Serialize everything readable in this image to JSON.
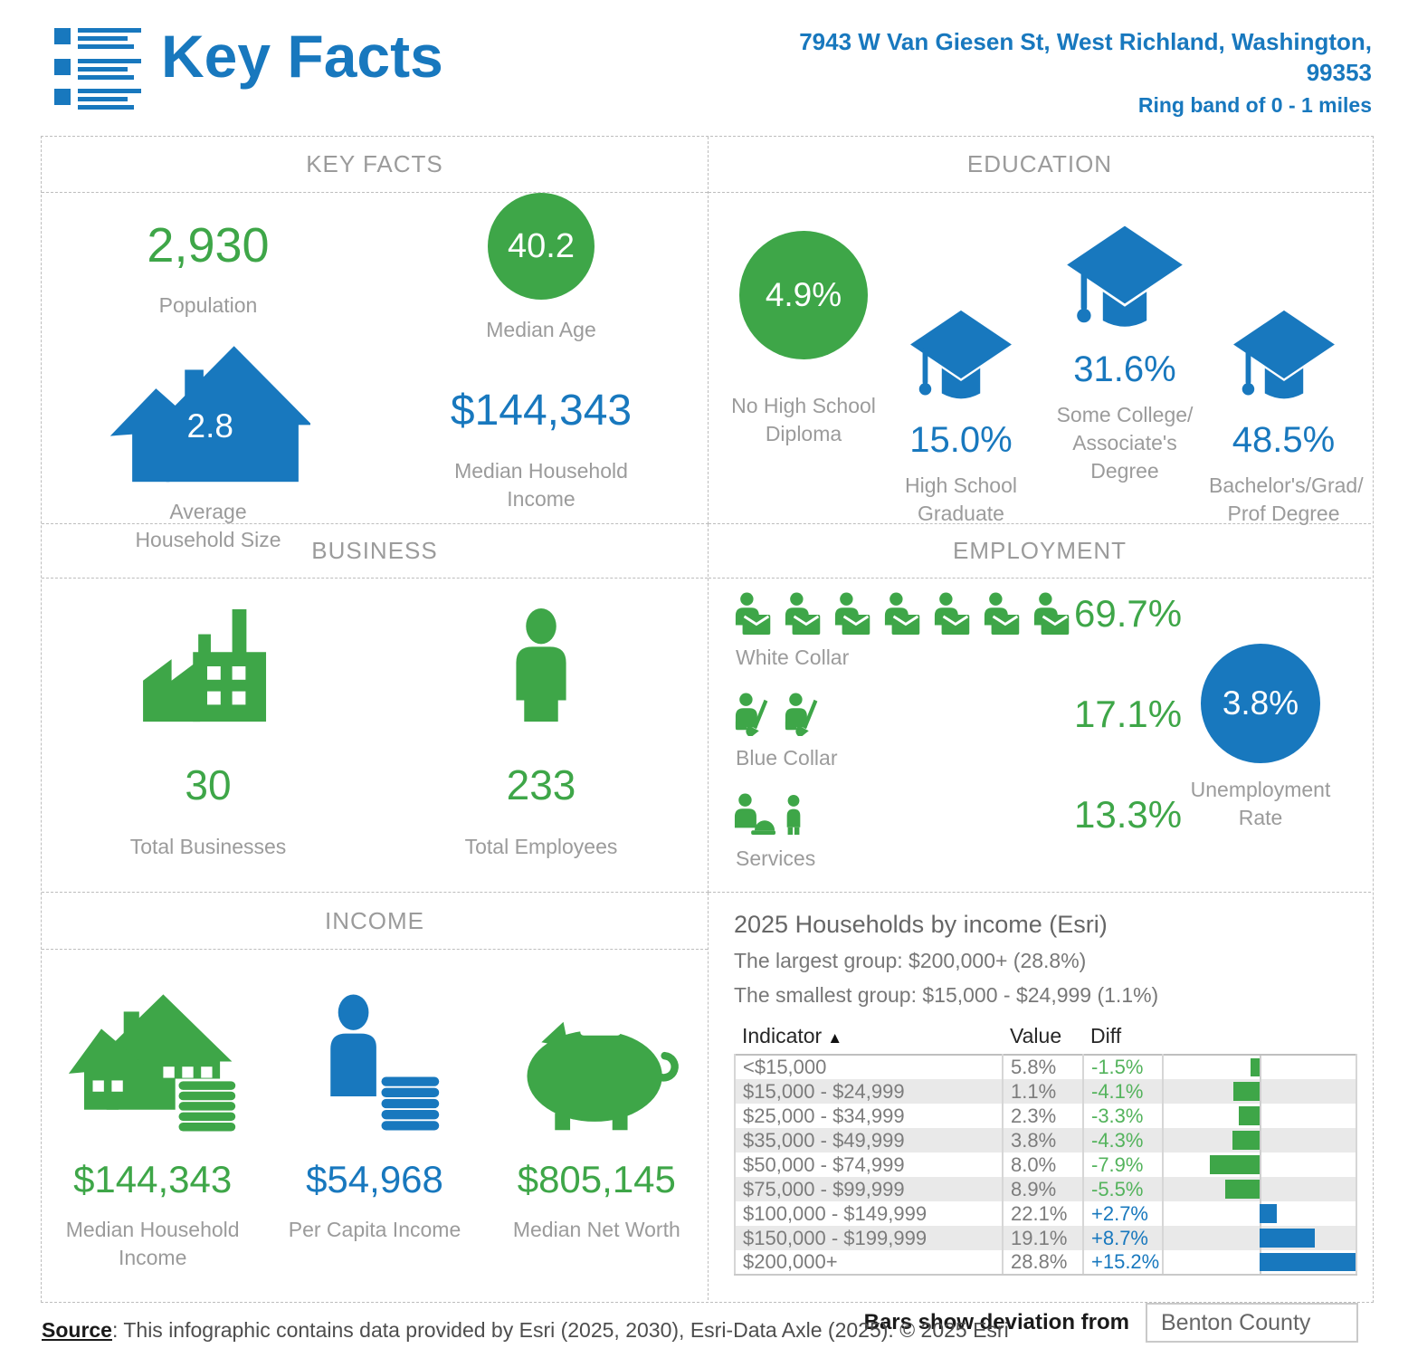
{
  "header": {
    "title": "Key Facts",
    "address": "7943 W Van Giesen St, West Richland, Washington,\n99353",
    "ring_band": "Ring band of 0 - 1 miles"
  },
  "colors": {
    "blue": "#1878BE",
    "green": "#3EA648",
    "label_gray": "#9b9b9b"
  },
  "panels": {
    "key_facts": {
      "title": "KEY FACTS",
      "population": {
        "value": "2,930",
        "label": "Population"
      },
      "median_age": {
        "value": "40.2",
        "label": "Median Age"
      },
      "avg_household_size": {
        "value": "2.8",
        "label": "Average\nHousehold Size"
      },
      "median_household_income": {
        "value": "$144,343",
        "label": "Median Household\nIncome"
      }
    },
    "education": {
      "title": "EDUCATION",
      "items": [
        {
          "value": "4.9%",
          "label": "No High School\nDiploma"
        },
        {
          "value": "15.0%",
          "label": "High School\nGraduate"
        },
        {
          "value": "31.6%",
          "label": "Some College/\nAssociate's Degree"
        },
        {
          "value": "48.5%",
          "label": "Bachelor's/Grad/\nProf Degree"
        }
      ]
    },
    "business": {
      "title": "BUSINESS",
      "total_businesses": {
        "value": "30",
        "label": "Total Businesses"
      },
      "total_employees": {
        "value": "233",
        "label": "Total Employees"
      }
    },
    "employment": {
      "title": "EMPLOYMENT",
      "categories": [
        {
          "value": "69.7%",
          "label": "White Collar",
          "icon_count": 7
        },
        {
          "value": "17.1%",
          "label": "Blue Collar",
          "icon_count": 2
        },
        {
          "value": "13.3%",
          "label": "Services",
          "icon_count": 2
        }
      ],
      "unemployment": {
        "value": "3.8%",
        "label": "Unemployment\nRate"
      }
    },
    "income": {
      "title": "INCOME",
      "items": [
        {
          "value": "$144,343",
          "label": "Median Household\nIncome",
          "color": "green"
        },
        {
          "value": "$54,968",
          "label": "Per Capita Income",
          "color": "blue"
        },
        {
          "value": "$805,145",
          "label": "Median Net Worth",
          "color": "green"
        }
      ]
    },
    "households_by_income": {
      "title": "2025 Households by income (Esri)",
      "largest_group": "The largest group: $200,000+ (28.8%)",
      "smallest_group": "The smallest group: $15,000 - $24,999 (1.1%)",
      "table": {
        "headers": {
          "indicator": "Indicator",
          "value": "Value",
          "diff": "Diff"
        },
        "sort_icon": "▲",
        "rows": [
          {
            "indicator": "<$15,000",
            "value": "5.8%",
            "diff": "-1.5%",
            "diff_num": -1.5
          },
          {
            "indicator": "$15,000 - $24,999",
            "value": "1.1%",
            "diff": "-4.1%",
            "diff_num": -4.1
          },
          {
            "indicator": "$25,000 - $34,999",
            "value": "2.3%",
            "diff": "-3.3%",
            "diff_num": -3.3
          },
          {
            "indicator": "$35,000 - $49,999",
            "value": "3.8%",
            "diff": "-4.3%",
            "diff_num": -4.3
          },
          {
            "indicator": "$50,000 - $74,999",
            "value": "8.0%",
            "diff": "-7.9%",
            "diff_num": -7.9
          },
          {
            "indicator": "$75,000 - $99,999",
            "value": "8.9%",
            "diff": "-5.5%",
            "diff_num": -5.5
          },
          {
            "indicator": "$100,000 - $149,999",
            "value": "22.1%",
            "diff": "+2.7%",
            "diff_num": 2.7
          },
          {
            "indicator": "$150,000 - $199,999",
            "value": "19.1%",
            "diff": "+8.7%",
            "diff_num": 8.7
          },
          {
            "indicator": "$200,000+",
            "value": "28.8%",
            "diff": "+15.2%",
            "diff_num": 15.2
          }
        ]
      },
      "deviation": {
        "label": "Bars show deviation from",
        "region": "Benton County"
      }
    }
  },
  "footer": {
    "source_label": "Source",
    "source_text": ": This infographic contains data provided by Esri (2025, 2030), Esri-Data Axle (2025).  © 2025 Esri"
  },
  "chart_data": {
    "type": "bar",
    "title": "2025 Households by income (Esri)",
    "categories": [
      "<$15,000",
      "$15,000 - $24,999",
      "$25,000 - $34,999",
      "$35,000 - $49,999",
      "$50,000 - $74,999",
      "$75,000 - $99,999",
      "$100,000 - $149,999",
      "$150,000 - $199,999",
      "$200,000+"
    ],
    "series": [
      {
        "name": "Value (%)",
        "values": [
          5.8,
          1.1,
          2.3,
          3.8,
          8.0,
          8.9,
          22.1,
          19.1,
          28.8
        ]
      },
      {
        "name": "Diff vs Benton County (pct pts)",
        "values": [
          -1.5,
          -4.1,
          -3.3,
          -4.3,
          -7.9,
          -5.5,
          2.7,
          8.7,
          15.2
        ]
      }
    ],
    "xlabel": "",
    "ylabel": "",
    "diff_axis_range": [
      -15.2,
      15.2
    ],
    "legend": "green bar = negative deviation, blue bar = positive deviation",
    "largest_group": "$200,000+ (28.8%)",
    "smallest_group": "$15,000 - $24,999 (1.1%)",
    "deviation_baseline": "Benton County"
  }
}
